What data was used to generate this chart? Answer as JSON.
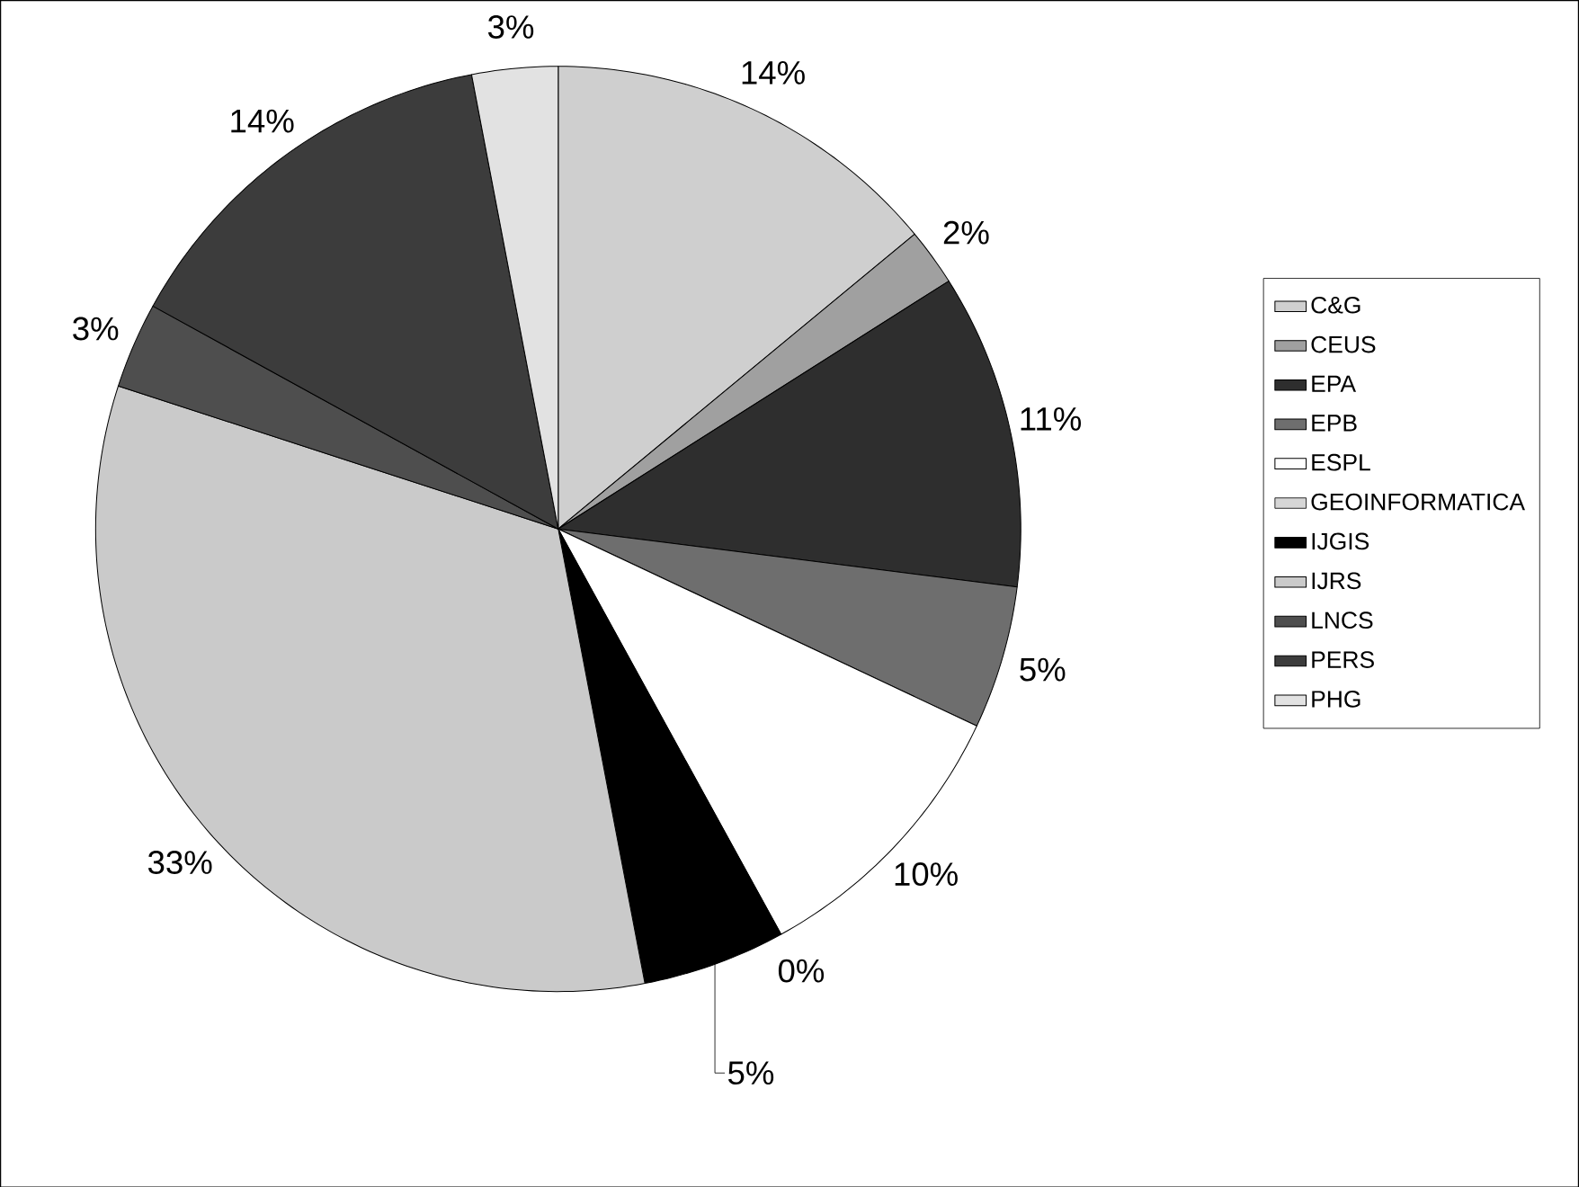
{
  "chart_data": {
    "type": "pie",
    "categories": [
      "C&G",
      "CEUS",
      "EPA",
      "EPB",
      "ESPL",
      "GEOINFORMATICA",
      "IJGIS",
      "IJRS",
      "LNCS",
      "PERS",
      "PHG"
    ],
    "values": [
      14,
      2,
      11,
      5,
      10,
      0,
      5,
      33,
      3,
      14,
      3
    ],
    "value_labels": [
      "14%",
      "2%",
      "11%",
      "5%",
      "10%",
      "0%",
      "5%",
      "33%",
      "3%",
      "14%",
      "3%"
    ],
    "colors": [
      "#cfcfcf",
      "#a0a0a0",
      "#2e2e2e",
      "#6e6e6e",
      "#ffffff",
      "#d6d6d6",
      "#000000",
      "#cacaca",
      "#4e4e4e",
      "#3c3c3c",
      "#e2e2e2"
    ],
    "legend": "right"
  }
}
